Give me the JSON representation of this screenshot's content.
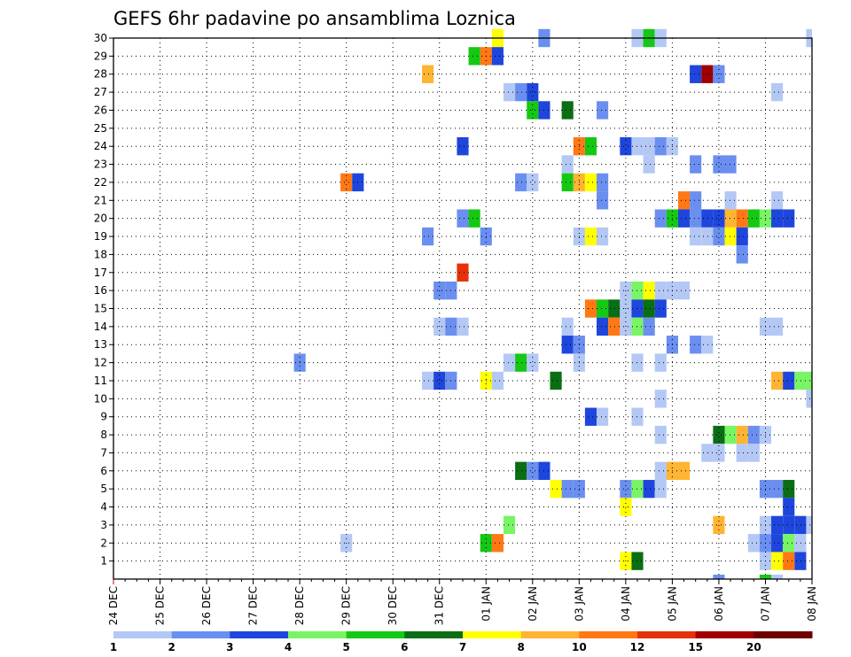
{
  "chart_data": {
    "type": "heatmap",
    "title": "GEFS 6hr padavine po ansamblima Loznica",
    "xlabel": "",
    "ylabel": "",
    "x_tick_labels": [
      "24 DEC",
      "25 DEC",
      "26 DEC",
      "27 DEC",
      "28 DEC",
      "29 DEC",
      "30 DEC",
      "31 DEC",
      "01 JAN",
      "02 JAN",
      "03 JAN",
      "04 JAN",
      "05 JAN",
      "06 JAN",
      "07 JAN",
      "08 JAN"
    ],
    "y_tick_labels": [
      "1",
      "2",
      "3",
      "4",
      "5",
      "6",
      "7",
      "8",
      "9",
      "10",
      "11",
      "12",
      "13",
      "14",
      "15",
      "16",
      "17",
      "18",
      "19",
      "20",
      "21",
      "22",
      "23",
      "24",
      "25",
      "26",
      "27",
      "28",
      "29",
      "30"
    ],
    "x_range_6h_steps": [
      0,
      60
    ],
    "y_range_members": [
      0,
      30
    ],
    "grid": true,
    "legend_position": "bottom",
    "legend_labels": [
      "1",
      "2",
      "3",
      "4",
      "5",
      "6",
      "7",
      "8",
      "10",
      "12",
      "15",
      "20"
    ],
    "colors": [
      "#b4c8f5",
      "#6b8ff0",
      "#1e46dc",
      "#78f564",
      "#14c814",
      "#0a6e14",
      "#ffff00",
      "#ffb432",
      "#ff7814",
      "#e6320a",
      "#a00000",
      "#6e0000"
    ],
    "cells_note_units": "x = 6-hour step index from 24 DEC 00Z, y = ensemble member, level = color class index 0..11",
    "cells": [
      [
        33,
        30,
        6
      ],
      [
        37,
        30,
        1
      ],
      [
        45,
        30,
        0
      ],
      [
        46,
        30,
        4
      ],
      [
        47,
        30,
        0
      ],
      [
        60,
        30,
        0
      ],
      [
        31,
        29,
        4
      ],
      [
        32,
        29,
        8
      ],
      [
        33,
        29,
        2
      ],
      [
        27,
        28,
        7
      ],
      [
        50,
        28,
        2
      ],
      [
        51,
        28,
        10
      ],
      [
        52,
        28,
        1
      ],
      [
        34,
        27,
        0
      ],
      [
        35,
        27,
        1
      ],
      [
        36,
        27,
        2
      ],
      [
        57,
        27,
        0
      ],
      [
        36,
        26,
        4
      ],
      [
        37,
        26,
        2
      ],
      [
        39,
        26,
        5
      ],
      [
        42,
        26,
        1
      ],
      [
        30,
        24,
        2
      ],
      [
        40,
        24,
        8
      ],
      [
        41,
        24,
        4
      ],
      [
        44,
        24,
        2
      ],
      [
        45,
        24,
        0
      ],
      [
        46,
        24,
        0
      ],
      [
        47,
        24,
        1
      ],
      [
        48,
        24,
        0
      ],
      [
        39,
        23,
        0
      ],
      [
        46,
        23,
        0
      ],
      [
        50,
        23,
        1
      ],
      [
        52,
        23,
        1
      ],
      [
        53,
        23,
        1
      ],
      [
        20,
        22,
        8
      ],
      [
        21,
        22,
        2
      ],
      [
        35,
        22,
        1
      ],
      [
        36,
        22,
        0
      ],
      [
        39,
        22,
        4
      ],
      [
        40,
        22,
        7
      ],
      [
        41,
        22,
        6
      ],
      [
        42,
        22,
        1
      ],
      [
        42,
        21,
        1
      ],
      [
        49,
        21,
        8
      ],
      [
        50,
        21,
        1
      ],
      [
        53,
        21,
        0
      ],
      [
        57,
        21,
        0
      ],
      [
        30,
        20,
        1
      ],
      [
        31,
        20,
        4
      ],
      [
        47,
        20,
        1
      ],
      [
        48,
        20,
        4
      ],
      [
        49,
        20,
        2
      ],
      [
        50,
        20,
        1
      ],
      [
        51,
        20,
        2
      ],
      [
        52,
        20,
        2
      ],
      [
        53,
        20,
        7
      ],
      [
        54,
        20,
        8
      ],
      [
        55,
        20,
        4
      ],
      [
        56,
        20,
        3
      ],
      [
        57,
        20,
        2
      ],
      [
        58,
        20,
        2
      ],
      [
        27,
        19,
        1
      ],
      [
        32,
        19,
        1
      ],
      [
        40,
        19,
        0
      ],
      [
        41,
        19,
        6
      ],
      [
        42,
        19,
        0
      ],
      [
        50,
        19,
        0
      ],
      [
        51,
        19,
        0
      ],
      [
        52,
        19,
        1
      ],
      [
        53,
        19,
        6
      ],
      [
        54,
        19,
        2
      ],
      [
        54,
        18,
        1
      ],
      [
        30,
        17,
        9
      ],
      [
        28,
        16,
        1
      ],
      [
        29,
        16,
        1
      ],
      [
        44,
        16,
        0
      ],
      [
        45,
        16,
        3
      ],
      [
        46,
        16,
        6
      ],
      [
        47,
        16,
        0
      ],
      [
        48,
        16,
        0
      ],
      [
        49,
        16,
        0
      ],
      [
        41,
        15,
        8
      ],
      [
        42,
        15,
        4
      ],
      [
        43,
        15,
        5
      ],
      [
        44,
        15,
        0
      ],
      [
        45,
        15,
        2
      ],
      [
        46,
        15,
        5
      ],
      [
        47,
        15,
        2
      ],
      [
        28,
        14,
        0
      ],
      [
        29,
        14,
        1
      ],
      [
        30,
        14,
        0
      ],
      [
        39,
        14,
        0
      ],
      [
        42,
        14,
        2
      ],
      [
        43,
        14,
        8
      ],
      [
        44,
        14,
        0
      ],
      [
        45,
        14,
        3
      ],
      [
        46,
        14,
        1
      ],
      [
        56,
        14,
        0
      ],
      [
        57,
        14,
        0
      ],
      [
        39,
        13,
        2
      ],
      [
        40,
        13,
        1
      ],
      [
        48,
        13,
        1
      ],
      [
        50,
        13,
        1
      ],
      [
        51,
        13,
        0
      ],
      [
        16,
        12,
        1
      ],
      [
        34,
        12,
        0
      ],
      [
        35,
        12,
        4
      ],
      [
        36,
        12,
        0
      ],
      [
        40,
        12,
        0
      ],
      [
        45,
        12,
        0
      ],
      [
        47,
        12,
        0
      ],
      [
        27,
        11,
        0
      ],
      [
        28,
        11,
        2
      ],
      [
        29,
        11,
        1
      ],
      [
        32,
        11,
        6
      ],
      [
        33,
        11,
        0
      ],
      [
        38,
        11,
        5
      ],
      [
        57,
        11,
        7
      ],
      [
        58,
        11,
        2
      ],
      [
        59,
        11,
        3
      ],
      [
        60,
        11,
        3
      ],
      [
        47,
        10,
        0
      ],
      [
        60,
        10,
        0
      ],
      [
        41,
        9,
        2
      ],
      [
        42,
        9,
        0
      ],
      [
        45,
        9,
        0
      ],
      [
        47,
        8,
        0
      ],
      [
        52,
        8,
        5
      ],
      [
        53,
        8,
        3
      ],
      [
        54,
        8,
        7
      ],
      [
        55,
        8,
        1
      ],
      [
        56,
        8,
        0
      ],
      [
        51,
        7,
        0
      ],
      [
        52,
        7,
        0
      ],
      [
        54,
        7,
        0
      ],
      [
        55,
        7,
        0
      ],
      [
        35,
        6,
        5
      ],
      [
        36,
        6,
        1
      ],
      [
        37,
        6,
        2
      ],
      [
        47,
        6,
        0
      ],
      [
        48,
        6,
        7
      ],
      [
        49,
        6,
        7
      ],
      [
        38,
        5,
        6
      ],
      [
        39,
        5,
        1
      ],
      [
        40,
        5,
        1
      ],
      [
        44,
        5,
        1
      ],
      [
        45,
        5,
        3
      ],
      [
        46,
        5,
        2
      ],
      [
        47,
        5,
        0
      ],
      [
        56,
        5,
        1
      ],
      [
        57,
        5,
        1
      ],
      [
        58,
        5,
        5
      ],
      [
        44,
        4,
        6
      ],
      [
        58,
        4,
        2
      ],
      [
        34,
        3,
        3
      ],
      [
        52,
        3,
        7
      ],
      [
        56,
        3,
        0
      ],
      [
        57,
        3,
        2
      ],
      [
        58,
        3,
        2
      ],
      [
        59,
        3,
        2
      ],
      [
        60,
        3,
        0
      ],
      [
        20,
        2,
        0
      ],
      [
        32,
        2,
        4
      ],
      [
        33,
        2,
        8
      ],
      [
        55,
        2,
        0
      ],
      [
        56,
        2,
        1
      ],
      [
        57,
        2,
        2
      ],
      [
        58,
        2,
        3
      ],
      [
        59,
        2,
        0
      ],
      [
        44,
        1,
        6
      ],
      [
        45,
        1,
        5
      ],
      [
        56,
        1,
        0
      ],
      [
        57,
        1,
        6
      ],
      [
        58,
        1,
        8
      ],
      [
        59,
        1,
        2
      ],
      [
        52,
        0,
        1
      ],
      [
        56,
        0,
        4
      ],
      [
        57,
        0,
        0
      ]
    ]
  }
}
